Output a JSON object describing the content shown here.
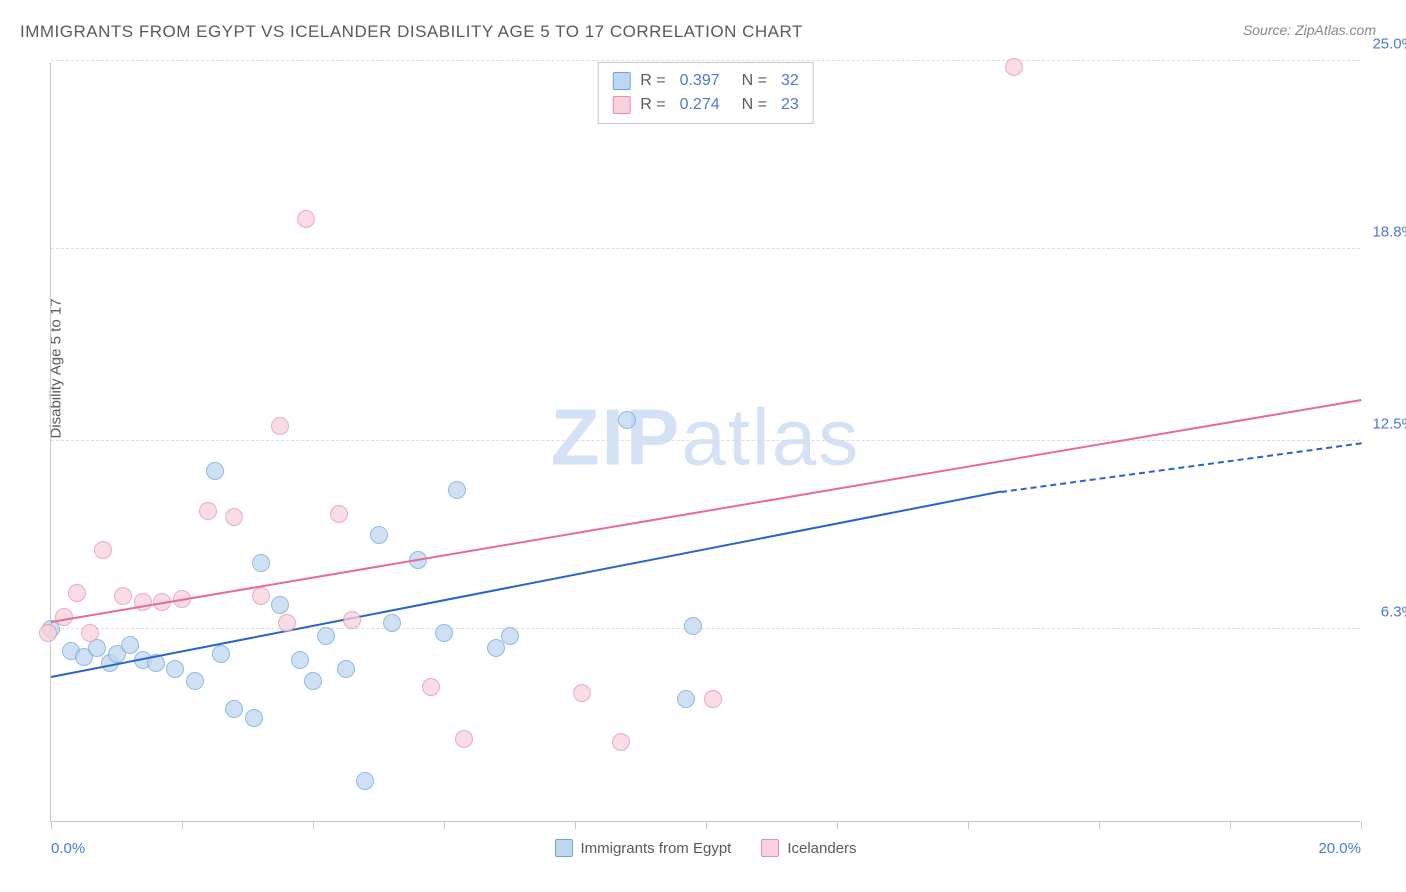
{
  "title": "IMMIGRANTS FROM EGYPT VS ICELANDER DISABILITY AGE 5 TO 17 CORRELATION CHART",
  "source_prefix": "Source: ",
  "source_name": "ZipAtlas.com",
  "ylabel": "Disability Age 5 to 17",
  "watermark_bold": "ZIP",
  "watermark_rest": "atlas",
  "chart": {
    "type": "scatter",
    "xlim": [
      0.0,
      20.0
    ],
    "ylim": [
      0.0,
      25.0
    ],
    "xtick_positions": [
      0,
      2,
      4,
      6,
      8,
      10,
      12,
      14,
      16,
      18,
      20
    ],
    "xtick_labels": {
      "0": "0.0%",
      "20": "20.0%"
    },
    "ytick_positions": [
      0,
      6.3,
      12.5,
      18.8,
      25.0
    ],
    "ytick_labels": [
      "",
      "6.3%",
      "12.5%",
      "18.8%",
      "25.0%"
    ],
    "background_color": "#ffffff",
    "grid_color": "#dcdcdc",
    "axis_color": "#c8c8c8",
    "marker_radius": 9,
    "marker_stroke_width": 1,
    "series": [
      {
        "name": "Immigrants from Egypt",
        "fill_color": "#bfd6f0",
        "stroke_color": "#6ca5de",
        "fill_opacity": 0.75,
        "R": 0.397,
        "N": 32,
        "points": [
          [
            0.0,
            6.3
          ],
          [
            0.3,
            5.6
          ],
          [
            0.5,
            5.4
          ],
          [
            0.7,
            5.7
          ],
          [
            0.9,
            5.2
          ],
          [
            1.0,
            5.5
          ],
          [
            1.2,
            5.8
          ],
          [
            1.4,
            5.3
          ],
          [
            1.6,
            5.2
          ],
          [
            1.9,
            5.0
          ],
          [
            2.2,
            4.6
          ],
          [
            2.5,
            11.5
          ],
          [
            2.6,
            5.5
          ],
          [
            2.8,
            3.7
          ],
          [
            3.1,
            3.4
          ],
          [
            3.2,
            8.5
          ],
          [
            3.5,
            7.1
          ],
          [
            3.8,
            5.3
          ],
          [
            4.0,
            4.6
          ],
          [
            4.2,
            6.1
          ],
          [
            4.5,
            5.0
          ],
          [
            4.8,
            1.3
          ],
          [
            5.0,
            9.4
          ],
          [
            5.2,
            6.5
          ],
          [
            5.6,
            8.6
          ],
          [
            6.0,
            6.2
          ],
          [
            6.2,
            10.9
          ],
          [
            6.8,
            5.7
          ],
          [
            7.0,
            6.1
          ],
          [
            8.8,
            13.2
          ],
          [
            9.7,
            4.0
          ],
          [
            9.8,
            6.4
          ]
        ],
        "trend": {
          "color": "#2b64c8",
          "width": 2,
          "start": [
            0.0,
            4.7
          ],
          "solid_end": [
            14.5,
            10.8
          ],
          "dash_end": [
            20.0,
            12.4
          ]
        }
      },
      {
        "name": "Icelanders",
        "fill_color": "#f7d1dc",
        "stroke_color": "#e58fab",
        "fill_opacity": 0.75,
        "R": 0.274,
        "N": 23,
        "points": [
          [
            -0.05,
            6.2
          ],
          [
            0.2,
            6.7
          ],
          [
            0.4,
            7.5
          ],
          [
            0.6,
            6.2
          ],
          [
            0.8,
            8.9
          ],
          [
            1.1,
            7.4
          ],
          [
            1.4,
            7.2
          ],
          [
            1.7,
            7.2
          ],
          [
            2.0,
            7.3
          ],
          [
            2.4,
            10.2
          ],
          [
            2.8,
            10.0
          ],
          [
            3.2,
            7.4
          ],
          [
            3.5,
            13.0
          ],
          [
            3.6,
            6.5
          ],
          [
            3.9,
            19.8
          ],
          [
            4.4,
            10.1
          ],
          [
            4.6,
            6.6
          ],
          [
            5.8,
            4.4
          ],
          [
            6.3,
            2.7
          ],
          [
            8.1,
            4.2
          ],
          [
            8.7,
            2.6
          ],
          [
            10.1,
            4.0
          ],
          [
            14.7,
            24.8
          ]
        ],
        "trend": {
          "color": "#e86b94",
          "width": 2,
          "start": [
            0.0,
            6.5
          ],
          "solid_end": [
            20.0,
            13.8
          ],
          "dash_end": null
        }
      }
    ]
  },
  "legend_top": {
    "R_label": "R =",
    "N_label": "N ="
  }
}
